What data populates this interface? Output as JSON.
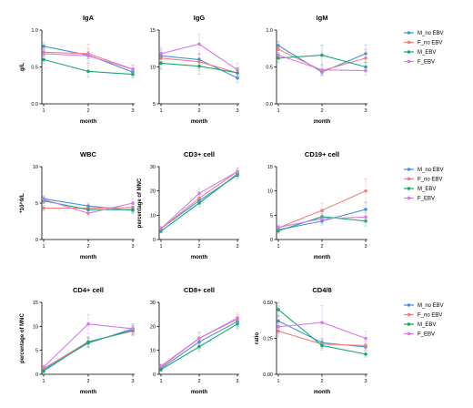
{
  "colors": {
    "M_no EBV": "#4a90e2",
    "F_no EBV": "#f08080",
    "M_EBV": "#1aaa70",
    "F_EBV": "#d67be8"
  },
  "chart_data": [
    {
      "type": "line",
      "title": "IgA",
      "xlabel": "month",
      "ylabel": "g/L",
      "categories": [
        "1",
        "2",
        "3"
      ],
      "ylim": [
        0,
        1.0
      ],
      "yticks": [
        "0.0",
        "0.5",
        "1.0"
      ],
      "series": [
        {
          "name": "M_no EBV",
          "values": [
            0.78,
            0.66,
            0.43
          ],
          "err": [
            0.05,
            0.05,
            0.05
          ]
        },
        {
          "name": "F_no EBV",
          "values": [
            0.7,
            0.68,
            0.47
          ],
          "err": [
            0.05,
            0.13,
            0.05
          ]
        },
        {
          "name": "M_EBV",
          "values": [
            0.6,
            0.44,
            0.4
          ],
          "err": [
            0.05,
            0.08,
            0.05
          ]
        },
        {
          "name": "F_EBV",
          "values": [
            0.68,
            0.65,
            0.47
          ],
          "err": [
            0.06,
            0.1,
            0.06
          ]
        }
      ]
    },
    {
      "type": "line",
      "title": "IgG",
      "xlabel": "month",
      "ylabel": "",
      "categories": [
        "1",
        "2",
        "3"
      ],
      "ylim": [
        5,
        15
      ],
      "yticks": [
        "5",
        "10",
        "15"
      ],
      "series": [
        {
          "name": "M_no EBV",
          "values": [
            11.5,
            11.0,
            8.5
          ],
          "err": [
            0.8,
            0.8,
            0.6
          ]
        },
        {
          "name": "F_no EBV",
          "values": [
            11.2,
            10.7,
            9.2
          ],
          "err": [
            0.8,
            1.0,
            0.7
          ]
        },
        {
          "name": "M_EBV",
          "values": [
            10.5,
            10.1,
            9.2
          ],
          "err": [
            0.8,
            1.1,
            0.7
          ]
        },
        {
          "name": "F_EBV",
          "values": [
            11.8,
            13.1,
            9.6
          ],
          "err": [
            0.8,
            1.3,
            0.9
          ]
        }
      ]
    },
    {
      "type": "line",
      "title": "IgM",
      "xlabel": "month",
      "ylabel": "",
      "categories": [
        "1",
        "2",
        "3"
      ],
      "ylim": [
        0,
        1.0
      ],
      "yticks": [
        "0.0",
        "0.5",
        "1.0"
      ],
      "series": [
        {
          "name": "M_no EBV",
          "values": [
            0.79,
            0.43,
            0.68
          ],
          "err": [
            0.06,
            0.04,
            0.12
          ]
        },
        {
          "name": "F_no EBV",
          "values": [
            0.74,
            0.45,
            0.62
          ],
          "err": [
            0.06,
            0.05,
            0.12
          ]
        },
        {
          "name": "M_EBV",
          "values": [
            0.62,
            0.66,
            0.5
          ],
          "err": [
            0.06,
            0.14,
            0.06
          ]
        },
        {
          "name": "F_EBV",
          "values": [
            0.66,
            0.46,
            0.45
          ],
          "err": [
            0.06,
            0.08,
            0.06
          ]
        }
      ]
    },
    {
      "type": "line",
      "title": "WBC",
      "xlabel": "month",
      "ylabel": "*10^9/L",
      "categories": [
        "1",
        "2",
        "3"
      ],
      "ylim": [
        0,
        10
      ],
      "yticks": [
        "0",
        "5",
        "10"
      ],
      "series": [
        {
          "name": "M_no EBV",
          "values": [
            5.6,
            4.6,
            4.0
          ],
          "err": [
            0.4,
            0.4,
            0.4
          ]
        },
        {
          "name": "F_no EBV",
          "values": [
            4.3,
            4.3,
            4.4
          ],
          "err": [
            0.4,
            0.4,
            0.4
          ]
        },
        {
          "name": "M_EBV",
          "values": [
            5.3,
            4.1,
            4.1
          ],
          "err": [
            0.4,
            0.4,
            0.4
          ]
        },
        {
          "name": "F_EBV",
          "values": [
            5.5,
            3.6,
            5.0
          ],
          "err": [
            0.5,
            0.4,
            0.6
          ]
        }
      ]
    },
    {
      "type": "line",
      "title": "CD3+ cell",
      "xlabel": "month",
      "ylabel": "percentage of MNC",
      "categories": [
        "1",
        "2",
        "3"
      ],
      "ylim": [
        0,
        30
      ],
      "yticks": [
        "0",
        "10",
        "20",
        "30"
      ],
      "series": [
        {
          "name": "M_no EBV",
          "values": [
            4.5,
            16.0,
            26.5
          ],
          "err": [
            0.8,
            1.5,
            1.5
          ]
        },
        {
          "name": "F_no EBV",
          "values": [
            4.5,
            17.0,
            28.0
          ],
          "err": [
            0.8,
            1.5,
            1.5
          ]
        },
        {
          "name": "M_EBV",
          "values": [
            3.5,
            15.0,
            27.0
          ],
          "err": [
            0.8,
            1.5,
            1.5
          ]
        },
        {
          "name": "F_EBV",
          "values": [
            4.5,
            19.0,
            28.0
          ],
          "err": [
            0.8,
            2.0,
            1.5
          ]
        }
      ]
    },
    {
      "type": "line",
      "title": "CD19+ cell",
      "xlabel": "month",
      "ylabel": "",
      "categories": [
        "1",
        "2",
        "3"
      ],
      "ylim": [
        0,
        15
      ],
      "yticks": [
        "0",
        "5",
        "10",
        "15"
      ],
      "series": [
        {
          "name": "M_no EBV",
          "values": [
            2.0,
            3.8,
            6.2
          ],
          "err": [
            0.5,
            0.8,
            1.5
          ]
        },
        {
          "name": "F_no EBV",
          "values": [
            2.4,
            6.0,
            10.0
          ],
          "err": [
            0.5,
            1.5,
            2.5
          ]
        },
        {
          "name": "M_EBV",
          "values": [
            1.8,
            4.7,
            3.8
          ],
          "err": [
            0.5,
            1.0,
            1.0
          ]
        },
        {
          "name": "F_EBV",
          "values": [
            2.5,
            4.3,
            4.6
          ],
          "err": [
            0.5,
            1.0,
            1.0
          ]
        }
      ]
    },
    {
      "type": "line",
      "title": "CD4+ cell",
      "xlabel": "month",
      "ylabel": "percentage of MNC",
      "categories": [
        "1",
        "2",
        "3"
      ],
      "ylim": [
        0,
        15
      ],
      "yticks": [
        "0",
        "5",
        "10",
        "15"
      ],
      "series": [
        {
          "name": "M_no EBV",
          "values": [
            1.0,
            6.5,
            9.5
          ],
          "err": [
            0.4,
            1.0,
            1.0
          ]
        },
        {
          "name": "F_no EBV",
          "values": [
            1.2,
            6.8,
            9.0
          ],
          "err": [
            0.4,
            1.0,
            1.0
          ]
        },
        {
          "name": "M_EBV",
          "values": [
            0.7,
            6.7,
            9.2
          ],
          "err": [
            0.4,
            1.0,
            1.0
          ]
        },
        {
          "name": "F_EBV",
          "values": [
            1.5,
            10.5,
            9.5
          ],
          "err": [
            0.4,
            2.0,
            1.0
          ]
        }
      ]
    },
    {
      "type": "line",
      "title": "CD8+ cell",
      "xlabel": "month",
      "ylabel": "",
      "categories": [
        "1",
        "2",
        "3"
      ],
      "ylim": [
        0,
        30
      ],
      "yticks": [
        "0",
        "10",
        "20",
        "30"
      ],
      "series": [
        {
          "name": "M_no EBV",
          "values": [
            2.5,
            13.5,
            22.0
          ],
          "err": [
            0.8,
            2.0,
            2.0
          ]
        },
        {
          "name": "F_no EBV",
          "values": [
            3.0,
            15.0,
            23.0
          ],
          "err": [
            0.8,
            2.5,
            2.0
          ]
        },
        {
          "name": "M_EBV",
          "values": [
            2.0,
            11.5,
            21.0
          ],
          "err": [
            0.8,
            2.0,
            2.0
          ]
        },
        {
          "name": "F_EBV",
          "values": [
            3.5,
            15.0,
            23.5
          ],
          "err": [
            0.8,
            2.5,
            2.0
          ]
        }
      ]
    },
    {
      "type": "line",
      "title": "CD4/8",
      "xlabel": "month",
      "ylabel": "ratio",
      "categories": [
        "1",
        "2",
        "3"
      ],
      "ylim": [
        0,
        0.5
      ],
      "yticks": [
        "0.00",
        "0.25",
        "0.50"
      ],
      "series": [
        {
          "name": "M_no EBV",
          "values": [
            0.37,
            0.22,
            0.19
          ],
          "err": [
            0.04,
            0.03,
            0.02
          ]
        },
        {
          "name": "F_no EBV",
          "values": [
            0.3,
            0.21,
            0.2
          ],
          "err": [
            0.04,
            0.03,
            0.03
          ]
        },
        {
          "name": "M_EBV",
          "values": [
            0.45,
            0.2,
            0.14
          ],
          "err": [
            0.05,
            0.03,
            0.02
          ]
        },
        {
          "name": "F_EBV",
          "values": [
            0.33,
            0.36,
            0.25
          ],
          "err": [
            0.05,
            0.12,
            0.05
          ]
        }
      ]
    }
  ]
}
